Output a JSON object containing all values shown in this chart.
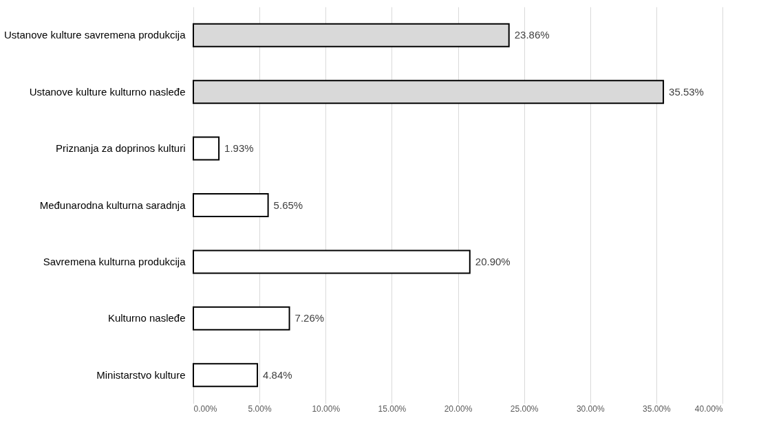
{
  "chart_data": {
    "type": "bar",
    "orientation": "horizontal",
    "categories": [
      "Ustanove kulture savremena produkcija",
      "Ustanove kulture kulturno nasleđe",
      "Priznanja za doprinos kulturi",
      "Međunarodna kulturna saradnja",
      "Savremena kulturna produkcija",
      "Kulturno nasleđe",
      "Ministarstvo kulture"
    ],
    "values": [
      23.86,
      35.53,
      1.93,
      5.65,
      20.9,
      7.26,
      4.84
    ],
    "value_labels": [
      "23.86%",
      "35.53%",
      "1.93%",
      "5.65%",
      "20.90%",
      "7.26%",
      "4.84%"
    ],
    "colors": [
      "#d9d9d9",
      "#d9d9d9",
      "#ffffff",
      "#ffffff",
      "#ffffff",
      "#ffffff",
      "#ffffff"
    ],
    "xlim": [
      0,
      40
    ],
    "xticks": [
      {
        "value": 0,
        "label": "0.00%"
      },
      {
        "value": 5,
        "label": "5.00%"
      },
      {
        "value": 10,
        "label": "10.00%"
      },
      {
        "value": 15,
        "label": "15.00%"
      },
      {
        "value": 20,
        "label": "20.00%"
      },
      {
        "value": 25,
        "label": "25.00%"
      },
      {
        "value": 30,
        "label": "30.00%"
      },
      {
        "value": 35,
        "label": "35.00%"
      },
      {
        "value": 40,
        "label": "40.00%"
      }
    ],
    "grid": "x"
  }
}
